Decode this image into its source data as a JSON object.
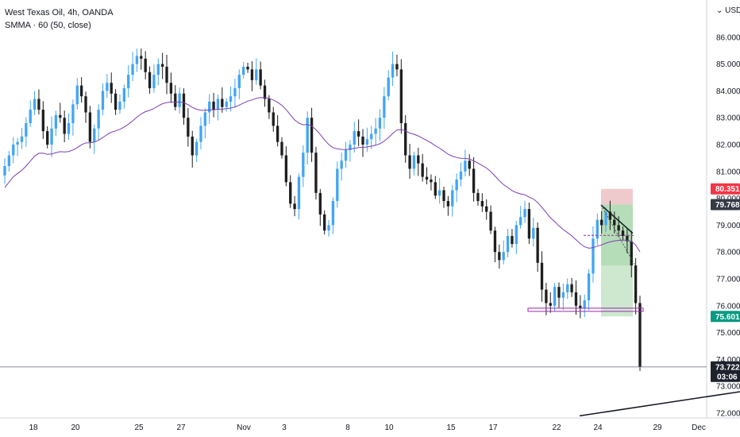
{
  "legend": {
    "symbol": "West Texas Oil, 4h, OANDA",
    "indicator": "SMMA · 60 (50, close)"
  },
  "currency": "USD",
  "colors": {
    "up": "#42a5f5",
    "down": "#1e1e1e",
    "smma": "#7b3fb5",
    "stop_zone": "#e8b4b8",
    "target_zone": "#a5d6a7",
    "stop_tag": "#f23645",
    "target_tag": "#089981",
    "last_tag": "#1e222d",
    "entry_tag": "#363a45"
  },
  "chart_data": {
    "type": "candlestick",
    "title": "West Texas Oil, 4h, OANDA",
    "ylim": [
      71.8,
      86.6
    ],
    "y_ticks": [
      "72.000",
      "73.000",
      "74.000",
      "75.000",
      "76.000",
      "77.000",
      "78.000",
      "79.000",
      "80.000",
      "81.000",
      "82.000",
      "83.000",
      "84.000",
      "85.000",
      "86.000"
    ],
    "x_ticks": [
      "18",
      "20",
      "25",
      "27",
      "Nov",
      "3",
      "8",
      "10",
      "15",
      "17",
      "22",
      "24",
      "29",
      "Dec"
    ],
    "price_tags": {
      "stop": "80.351",
      "entry": "79.768",
      "target": "75.601",
      "last": "73.722",
      "countdown": "03:06"
    },
    "closes": [
      81.2,
      81.6,
      82.0,
      82.1,
      82.3,
      82.8,
      83.3,
      83.7,
      83.3,
      82.5,
      82.0,
      82.6,
      83.1,
      83.0,
      82.4,
      82.8,
      83.5,
      84.2,
      83.8,
      83.2,
      82.1,
      82.6,
      83.3,
      84.0,
      84.3,
      83.9,
      83.3,
      83.6,
      84.1,
      84.6,
      85.0,
      85.3,
      85.2,
      84.7,
      84.1,
      84.6,
      85.0,
      84.9,
      84.3,
      83.9,
      83.4,
      83.9,
      83.0,
      82.3,
      81.6,
      82.1,
      82.7,
      83.2,
      83.6,
      83.3,
      83.7,
      83.4,
      83.6,
      83.8,
      84.1,
      84.6,
      84.9,
      84.8,
      84.4,
      84.8,
      84.2,
      83.7,
      83.2,
      82.7,
      82.1,
      81.6,
      80.6,
      79.8,
      79.6,
      80.8,
      81.7,
      83.0,
      81.7,
      80.2,
      79.4,
      78.8,
      79.0,
      79.9,
      81.1,
      81.4,
      81.8,
      82.0,
      82.5,
      82.3,
      82.0,
      82.2,
      82.4,
      82.6,
      83.0,
      83.8,
      84.5,
      85.0,
      84.8,
      82.8,
      81.6,
      81.1,
      81.6,
      81.3,
      80.8,
      80.7,
      80.6,
      80.1,
      80.3,
      79.9,
      79.7,
      80.3,
      80.7,
      81.0,
      81.4,
      81.1,
      80.2,
      79.9,
      79.7,
      79.5,
      78.8,
      78.0,
      77.7,
      78.0,
      78.6,
      78.3,
      79.0,
      79.3,
      79.6,
      78.5,
      78.9,
      77.6,
      76.6,
      76.1,
      76.0,
      76.7,
      76.3,
      76.5,
      76.8,
      76.5,
      76.0,
      75.9,
      76.2,
      77.2,
      78.5,
      79.2,
      79.0,
      79.5,
      79.2,
      79.0,
      78.8,
      78.6,
      78.4,
      77.5,
      76.1,
      73.722
    ]
  }
}
